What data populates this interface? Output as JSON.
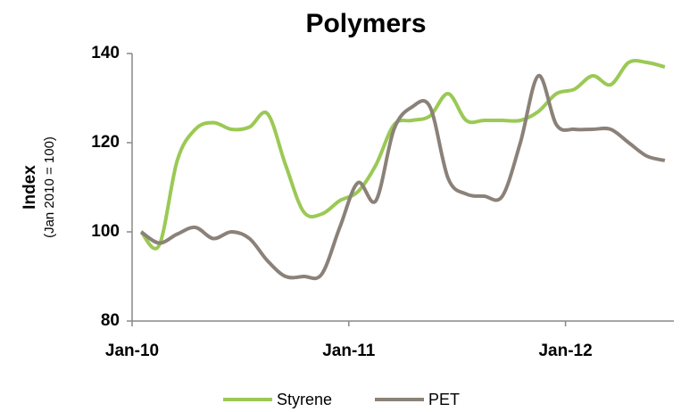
{
  "chart_data": {
    "type": "line",
    "title": "Polymers",
    "ylabel": "Index",
    "ylabel_sub": "(Jan 2010 = 100)",
    "categories": [
      "Jan-10",
      null,
      null,
      null,
      null,
      null,
      null,
      null,
      null,
      null,
      null,
      null,
      "Jan-11",
      null,
      null,
      null,
      null,
      null,
      null,
      null,
      null,
      null,
      null,
      null,
      "Jan-12",
      null,
      null,
      null,
      null,
      null
    ],
    "series": [
      {
        "name": "Styrene",
        "color": "#9bc955",
        "values": [
          100,
          97,
          116,
          123,
          124.5,
          123,
          123.5,
          126.5,
          115,
          104.5,
          104,
          107,
          109,
          115,
          124,
          125,
          126,
          131,
          125,
          125,
          125,
          125,
          127,
          131,
          132,
          135,
          133,
          138,
          138,
          137
        ]
      },
      {
        "name": "PET",
        "color": "#8b8178",
        "values": [
          100,
          97.5,
          99.5,
          101,
          98.5,
          100,
          98.5,
          93.5,
          90,
          90,
          90.5,
          101,
          111,
          107,
          123,
          128,
          128,
          112,
          108.5,
          108,
          108,
          120,
          135,
          124,
          123,
          123,
          123,
          120,
          117,
          116
        ]
      }
    ],
    "ylim": [
      80,
      140
    ],
    "yticks": [
      80,
      100,
      120,
      140
    ],
    "grid": false,
    "legend": "bottom"
  }
}
